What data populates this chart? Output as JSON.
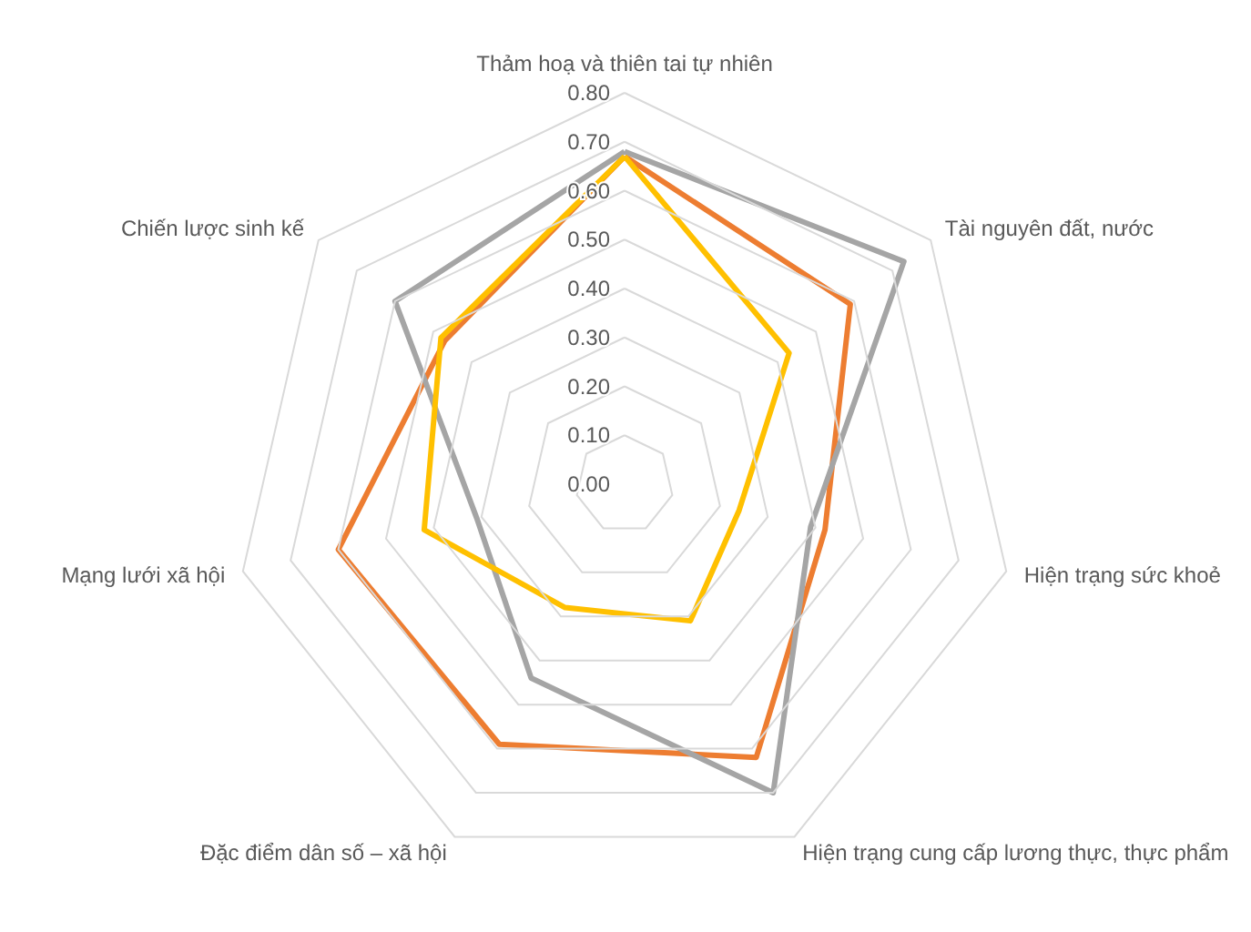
{
  "chart_data": {
    "type": "radar",
    "categories": [
      "Thảm hoạ và thiên tai tự nhiên",
      "Tài nguyên đất, nước",
      "Hiện trạng sức khoẻ",
      "Hiện trạng cung cấp lương thực, thực phẩm",
      "Đặc điểm dân số – xã hội",
      "Mạng lưới xã hội",
      "Chiến lược sinh kế"
    ],
    "series": [
      {
        "color": "#ed7d31",
        "values": [
          0.67,
          0.59,
          0.42,
          0.62,
          0.59,
          0.6,
          0.47
        ]
      },
      {
        "color": "#a5a5a5",
        "values": [
          0.68,
          0.73,
          0.39,
          0.7,
          0.44,
          0.31,
          0.6
        ]
      },
      {
        "color": "#ffc000",
        "values": [
          0.67,
          0.43,
          0.24,
          0.31,
          0.28,
          0.42,
          0.48
        ]
      }
    ],
    "ylim": [
      0,
      0.8
    ],
    "yticks": [
      {
        "value": 0,
        "label": "0.00"
      },
      {
        "value": 0.1,
        "label": "0.10"
      },
      {
        "value": 0.2,
        "label": "0.20"
      },
      {
        "value": 0.3,
        "label": "0.30"
      },
      {
        "value": 0.4,
        "label": "0.40"
      },
      {
        "value": 0.5,
        "label": "0.50"
      },
      {
        "value": 0.6,
        "label": "0.60"
      },
      {
        "value": 0.7,
        "label": "0.70"
      },
      {
        "value": 0.8,
        "label": "0.80"
      }
    ],
    "grid": true,
    "marker": "none",
    "line_style": "solid"
  }
}
